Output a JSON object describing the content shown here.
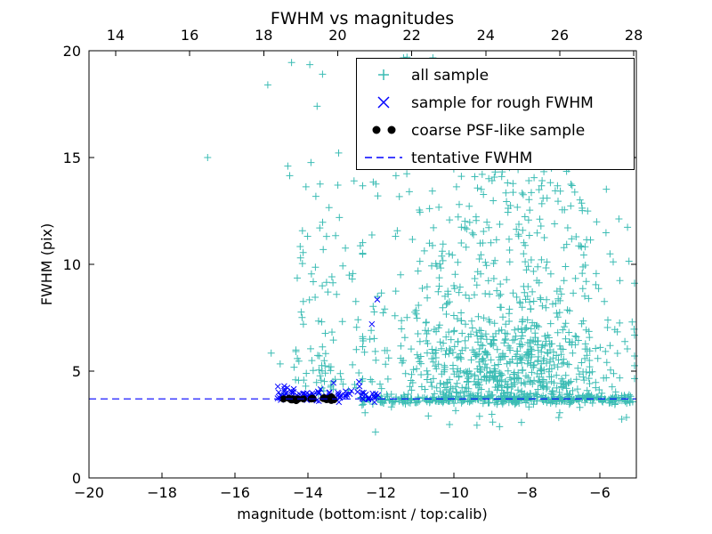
{
  "chart_data": {
    "type": "scatter",
    "title": "FWHM vs magnitudes",
    "xlabel": "magnitude (bottom:isnt / top:calib)",
    "ylabel": "FWHM (pix)",
    "xlim": [
      -20,
      -5
    ],
    "ylim": [
      0,
      20
    ],
    "x_ticks": [
      -20,
      -18,
      -16,
      -14,
      -12,
      -10,
      -8,
      -6
    ],
    "y_ticks": [
      0,
      5,
      10,
      15,
      20
    ],
    "top_axis": {
      "lim": [
        13.28,
        28.07
      ],
      "ticks": [
        14,
        16,
        18,
        20,
        22,
        24,
        26,
        28
      ]
    },
    "tentative_fwhm": 3.7,
    "grid": false,
    "legend_position": "top-right",
    "colors": {
      "all_sample": "#3bbcb4",
      "rough_sample": "#0000ff",
      "psf_sample": "#000000",
      "tentative_line": "#0000ff"
    },
    "legend": [
      {
        "label": "all sample",
        "marker": "plus",
        "color": "#3bbcb4"
      },
      {
        "label": "sample for rough FWHM",
        "marker": "x",
        "color": "#0000ff"
      },
      {
        "label": "coarse PSF-like sample",
        "marker": "dots",
        "color": "#000000"
      },
      {
        "label": "tentative FWHM",
        "marker": "dash",
        "color": "#0000ff"
      }
    ],
    "seed": 7,
    "series": [
      {
        "name": "all sample",
        "marker": "plus",
        "color": "#3bbcb4",
        "clusters": [
          {
            "n": 380,
            "x": {
              "dist": "uniform",
              "p": [
                -12.55,
                -5.05
              ]
            },
            "y": {
              "dist": "normal",
              "p": [
                3.68,
                0.11
              ],
              "clip": [
                3.3,
                4.1
              ]
            }
          },
          {
            "n": 480,
            "x": {
              "dist": "normal",
              "p": [
                -8.6,
                1.3
              ],
              "clip": [
                -12.5,
                -5.05
              ]
            },
            "y": {
              "dist": "absnormal",
              "p": [
                3.7,
                2.2
              ],
              "clip": [
                3.7,
                19.9
              ]
            }
          },
          {
            "n": 260,
            "x": {
              "dist": "normal",
              "p": [
                -8.8,
                1.5
              ],
              "clip": [
                -12.5,
                -5.05
              ]
            },
            "y": {
              "dist": "uniform",
              "p": [
                5.5,
                15.5
              ]
            }
          },
          {
            "n": 110,
            "x": {
              "dist": "uniform",
              "p": [
                -12.45,
                -5.05
              ]
            },
            "y": {
              "dist": "uniform",
              "p": [
                7,
                19.9
              ]
            }
          },
          {
            "n": 90,
            "x": {
              "dist": "uniform",
              "p": [
                -12.45,
                -5.05
              ]
            },
            "y": {
              "dist": "uniform",
              "p": [
                3.95,
                7
              ]
            }
          },
          {
            "n": 90,
            "x": {
              "dist": "uniform",
              "p": [
                -14.35,
                -12.4
              ]
            },
            "y": {
              "dist": "absnormal",
              "p": [
                4.0,
                5.5
              ],
              "clip": [
                3.6,
                19.8
              ]
            }
          },
          {
            "n": 14,
            "x": {
              "dist": "uniform",
              "p": [
                -15.05,
                -12.6
              ]
            },
            "y": {
              "dist": "normal",
              "p": [
                4.9,
                0.6
              ],
              "clip": [
                3.9,
                6.5
              ]
            }
          },
          {
            "n": 10,
            "x": {
              "dist": "uniform",
              "p": [
                -12.5,
                -5.2
              ]
            },
            "y": {
              "dist": "uniform",
              "p": [
                2.4,
                3.4
              ]
            }
          }
        ],
        "points": [
          [
            -16.75,
            15.0
          ],
          [
            -15.1,
            18.4
          ],
          [
            -14.45,
            19.45
          ],
          [
            -13.95,
            19.35
          ],
          [
            -13.6,
            18.9
          ],
          [
            -14.55,
            14.6
          ],
          [
            -14.5,
            14.15
          ],
          [
            -13.75,
            17.4
          ],
          [
            -12.15,
            2.15
          ],
          [
            -10.7,
            2.9
          ],
          [
            -9.95,
            3.15
          ],
          [
            -8.15,
            2.6
          ],
          [
            -7.1,
            3.05
          ],
          [
            -6.55,
            3.3
          ],
          [
            -5.4,
            2.75
          ]
        ]
      },
      {
        "name": "sample for rough FWHM",
        "marker": "x",
        "color": "#0000ff",
        "clusters": [
          {
            "n": 78,
            "x": {
              "dist": "uniform",
              "p": [
                -14.85,
                -12.05
              ]
            },
            "y": {
              "dist": "normal",
              "p": [
                3.88,
                0.17
              ],
              "clip": [
                3.55,
                4.5
              ]
            }
          }
        ],
        "points": [
          [
            -12.1,
            8.35
          ],
          [
            -12.25,
            7.2
          ],
          [
            -13.3,
            4.45
          ],
          [
            -14.65,
            4.3
          ],
          [
            -12.6,
            4.5
          ]
        ]
      },
      {
        "name": "coarse PSF-like sample",
        "marker": "dot",
        "color": "#000000",
        "clusters": [
          {
            "n": 24,
            "x": {
              "dist": "uniform",
              "p": [
                -14.68,
                -12.82
              ]
            },
            "y": {
              "dist": "normal",
              "p": [
                3.7,
                0.045
              ],
              "clip": [
                3.6,
                3.82
              ]
            }
          }
        ],
        "points": []
      }
    ]
  }
}
